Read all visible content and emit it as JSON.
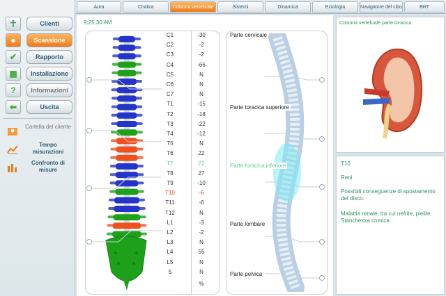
{
  "sidebar": {
    "items": [
      {
        "label": "Clienti",
        "icon": "person-icon"
      },
      {
        "label": "Scansione",
        "icon": "scan-person-icon"
      },
      {
        "label": "Rapporto",
        "icon": "checkmark-icon"
      },
      {
        "label": "Installazione",
        "icon": "grid-settings-icon"
      },
      {
        "label": "Informazioni",
        "icon": "question-icon"
      },
      {
        "label": "Uscita",
        "icon": "exit-arrow-icon"
      }
    ],
    "subitems": [
      {
        "label": "Cartella del cliente"
      },
      {
        "label": "Tempo misurazioni"
      },
      {
        "label": "Confronto di misure"
      }
    ]
  },
  "tabs": [
    "Aura",
    "Chakra",
    "Colonna vertebrale",
    "Sistemi",
    "Dinamica",
    "Eziologia",
    "Navigatore del cibo",
    "BRT"
  ],
  "clock": "9:25:30 AM",
  "vertebrae": [
    {
      "name": "C1",
      "value": "-30"
    },
    {
      "name": "C2",
      "value": "-2"
    },
    {
      "name": "C3",
      "value": "-2"
    },
    {
      "name": "C4",
      "value": "-66"
    },
    {
      "name": "C5",
      "value": "N"
    },
    {
      "name": "C6",
      "value": "N"
    },
    {
      "name": "C7",
      "value": "N"
    },
    {
      "name": "T1",
      "value": "-15"
    },
    {
      "name": "T2",
      "value": "-18"
    },
    {
      "name": "T3",
      "value": "-22"
    },
    {
      "name": "T4",
      "value": "-12"
    },
    {
      "name": "T5",
      "value": "N"
    },
    {
      "name": "T6",
      "value": "22"
    },
    {
      "name": "T7",
      "value": "22"
    },
    {
      "name": "T8",
      "value": "27"
    },
    {
      "name": "T9",
      "value": "-10"
    },
    {
      "name": "T10",
      "value": "-6"
    },
    {
      "name": "T11",
      "value": "-6"
    },
    {
      "name": "T12",
      "value": "N"
    },
    {
      "name": "L1",
      "value": "-3"
    },
    {
      "name": "L2",
      "value": "-2"
    },
    {
      "name": "L3",
      "value": "N"
    },
    {
      "name": "L4",
      "value": "55"
    },
    {
      "name": "L5",
      "value": "N"
    },
    {
      "name": "S",
      "value": "N"
    }
  ],
  "percent_label": "%",
  "regions": [
    "Parte cervicale",
    "Parte toracica superiore",
    "Parte toracica inferiore",
    "Parte lombare",
    "Parte pelvica"
  ],
  "image_title": "Colonna vertebrale parte toracica",
  "detail": {
    "code": "T10",
    "organ": "Reni.",
    "consequences_title": "Possibili conseguenze di spostamento del disco:",
    "consequences": "Malattia renale, tra cui nefrite, pielite. Stanchezza cronica."
  },
  "colors": {
    "accent": "#ee7a1b",
    "green": "#2f9160",
    "highlight": "#5bd18d",
    "red": "#e03b24",
    "blue": "#2535c8"
  }
}
